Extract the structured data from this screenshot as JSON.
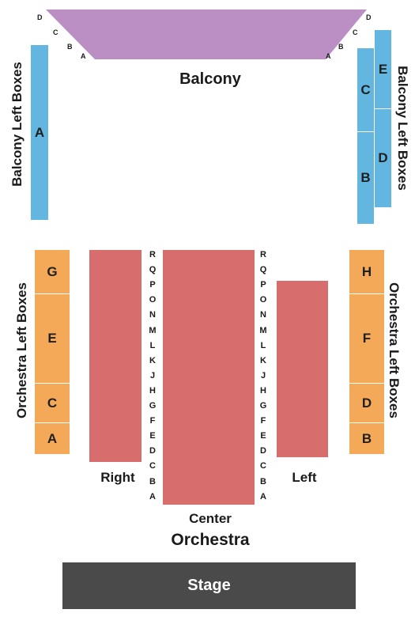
{
  "balcony": {
    "label": "Balcony",
    "rows_left": [
      "D",
      "C",
      "B",
      "A"
    ],
    "rows_right": [
      "D",
      "C",
      "B",
      "A"
    ],
    "color": "#bb8fc3"
  },
  "balcony_left_boxes": {
    "label": "Balcony Left Boxes",
    "sections": [
      "A"
    ]
  },
  "balcony_right_boxes": {
    "label": "Balcony Left Boxes",
    "sections": [
      "C",
      "B",
      "E",
      "D"
    ]
  },
  "orchestra_left_boxes": {
    "label": "Orchestra Left Boxes",
    "sections": [
      "G",
      "E",
      "C",
      "A"
    ]
  },
  "orchestra_right_boxes": {
    "label": "Orchestra Left Boxes",
    "sections": [
      "H",
      "F",
      "D",
      "B"
    ]
  },
  "orchestra": {
    "label": "Orchestra",
    "right_label": "Right",
    "center_label": "Center",
    "left_label": "Left",
    "rows": [
      "R",
      "Q",
      "P",
      "O",
      "N",
      "M",
      "L",
      "K",
      "J",
      "H",
      "G",
      "F",
      "E",
      "D",
      "C",
      "B",
      "A"
    ],
    "color": "#d86d6d"
  },
  "stage": {
    "label": "Stage",
    "color": "#4a4a4a"
  },
  "colors": {
    "boxes_blue": "#62b6e0",
    "boxes_orange": "#f3a957"
  }
}
